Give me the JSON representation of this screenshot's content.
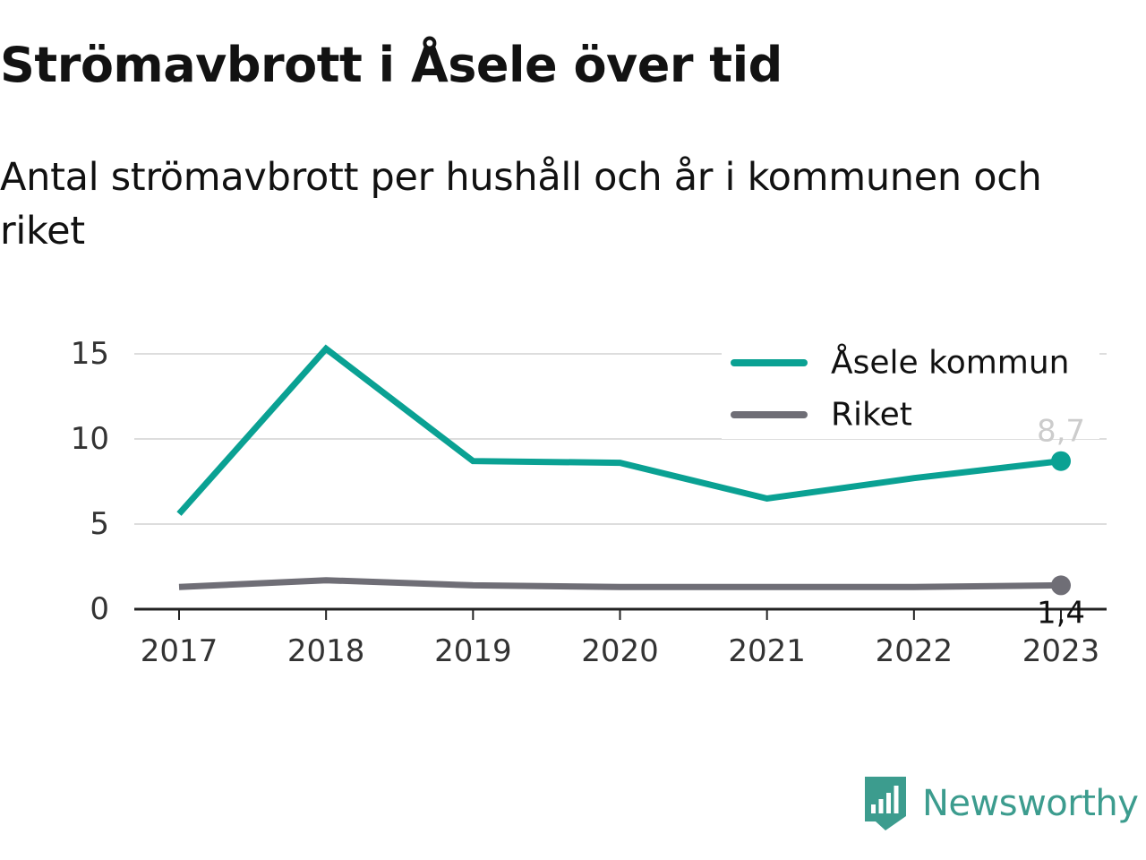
{
  "title": "Strömavbrott i Åsele över tid",
  "subtitle": "Antal strömavbrott per hushåll och år i kommunen och riket",
  "brand": "Newsworthy",
  "colors": {
    "primary": "#0aa193",
    "secondary": "#6f6e76",
    "grid": "#dddddd",
    "axis": "#222222",
    "brand": "#3c9c8e",
    "last_label_primary": "#cccccc"
  },
  "chart_data": {
    "type": "line",
    "categories": [
      "2017",
      "2018",
      "2019",
      "2020",
      "2021",
      "2022",
      "2023"
    ],
    "ylim": [
      0,
      15
    ],
    "yticks": [
      0,
      5,
      10,
      15
    ],
    "ytick_labels": [
      "0",
      "5",
      "10",
      "15"
    ],
    "grid": true,
    "legend_position": "top-right",
    "series": [
      {
        "name": "Åsele kommun",
        "values": [
          5.6,
          15.3,
          8.7,
          8.6,
          6.5,
          7.7,
          8.7
        ],
        "color": "#0aa193",
        "end_label": "8,7"
      },
      {
        "name": "Riket",
        "values": [
          1.3,
          1.7,
          1.4,
          1.3,
          1.3,
          1.3,
          1.4
        ],
        "color": "#6f6e76",
        "end_label": "1,4"
      }
    ]
  }
}
